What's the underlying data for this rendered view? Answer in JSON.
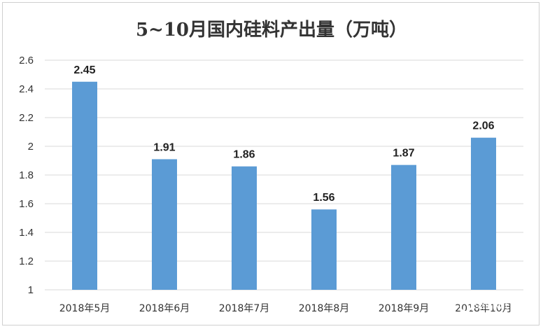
{
  "chart_data": {
    "type": "bar",
    "title": "5~10月国内硅料产出量（万吨）",
    "categories": [
      "2018年5月",
      "2018年6月",
      "2018年7月",
      "2018年8月",
      "2018年9月",
      "2018年10月"
    ],
    "values": [
      2.45,
      1.91,
      1.86,
      1.56,
      1.87,
      2.06
    ],
    "data_labels": [
      "2.45",
      "1.91",
      "1.86",
      "1.56",
      "1.87",
      "2.06"
    ],
    "ylim": [
      1,
      2.6
    ],
    "yticks": [
      1,
      1.2,
      1.4,
      1.6,
      1.8,
      2,
      2.2,
      2.4,
      2.6
    ],
    "ytick_labels": [
      "1",
      "1.2",
      "1.4",
      "1.6",
      "1.8",
      "2",
      "2.2",
      "2.4",
      "2.6"
    ],
    "xlabel": "",
    "ylabel": "",
    "grid": true,
    "bar_color": "#5b9bd5",
    "grid_color": "#d9d9d9",
    "watermark": "Solarwit"
  }
}
